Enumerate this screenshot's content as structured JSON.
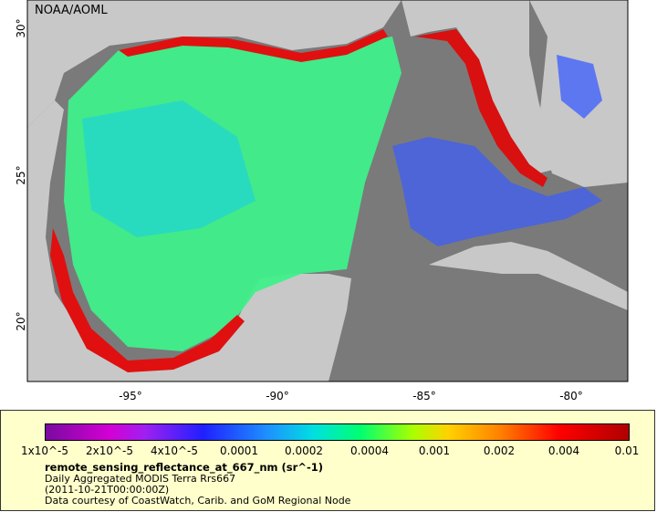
{
  "source_badge": "NOAA/AOML",
  "map": {
    "lon_ticks": [
      "-95°",
      "-90°",
      "-85°",
      "-80°"
    ],
    "lat_ticks": [
      "30°",
      "25°",
      "20°"
    ],
    "lon_range": [
      -98,
      -78
    ],
    "lat_range": [
      18,
      31
    ]
  },
  "legend": {
    "colorbar_labels": [
      "1x10^-5",
      "2x10^-5",
      "4x10^-5",
      "0.0001",
      "0.0002",
      "0.0004",
      "0.001",
      "0.002",
      "0.004",
      "0.01"
    ],
    "variable": "remote_sensing_reflectance_at_667_nm (sr^-1)",
    "product": "Daily Aggregated MODIS Terra Rrs667",
    "time": "(2011-10-21T00:00:00Z)",
    "credit": "Data courtesy of CoastWatch, Carib. and GoM Regional Node"
  },
  "colors": {
    "land": "#c8c8c8",
    "no_data": "#7a7a7a",
    "low": "#7a0aa0",
    "high": "#b00000"
  }
}
